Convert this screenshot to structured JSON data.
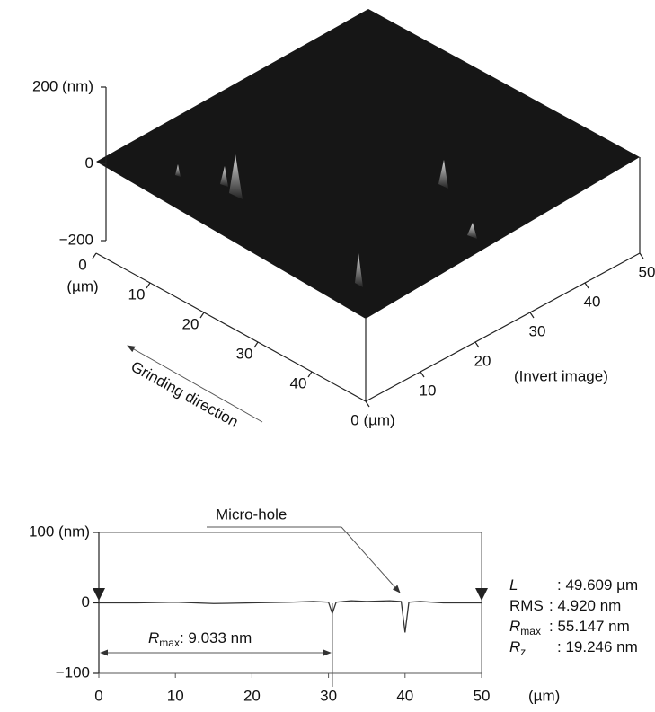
{
  "chart_data": [
    {
      "type": "surface3d",
      "zlim": [
        -200,
        200
      ],
      "zticks": [
        {
          "value": 200,
          "label": "200 (nm)"
        },
        0,
        {
          "value": -200,
          "label": "−200"
        }
      ],
      "xlim": [
        0,
        50
      ],
      "xticks": [
        0,
        10,
        20,
        30,
        40
      ],
      "xlabel": "(µm)",
      "ylim": [
        0,
        50
      ],
      "yticks": [
        {
          "value": 0,
          "label": "0 (µm)"
        },
        10,
        20,
        30,
        40,
        50
      ],
      "direction_label": "Grinding direction",
      "note": "(Invert image)"
    },
    {
      "type": "line",
      "xlim": [
        0,
        50
      ],
      "xticks": [
        0,
        10,
        20,
        30,
        40,
        50
      ],
      "xlabel": "(µm)",
      "ylim": [
        -100,
        100
      ],
      "yticks": [
        {
          "value": 100,
          "label": "100 (nm)"
        },
        0,
        {
          "value": -100,
          "label": "−100"
        }
      ],
      "color": "#333333",
      "x": [
        0,
        5,
        10,
        15,
        20,
        25,
        28,
        30,
        30.5,
        31,
        33,
        35,
        38,
        39.5,
        40,
        40.5,
        42,
        45,
        50
      ],
      "values": [
        0,
        0,
        1,
        -1,
        0,
        1,
        2,
        1,
        -15,
        1,
        3,
        2,
        3,
        2,
        -42,
        1,
        2,
        0,
        0
      ],
      "annotation_hole": "Micro-hole",
      "annotation_rmax": {
        "symbol": "R",
        "subscript": "max",
        "value": ": 9.033 nm"
      },
      "stats": [
        {
          "symbol": "L",
          "value": ": 49.609 µm"
        },
        {
          "symbol": "RMS",
          "value": ":  4.920 nm"
        },
        {
          "symbol": "R",
          "subscript": "max",
          "value": ": 55.147 nm"
        },
        {
          "symbol": "R",
          "subscript": "z",
          "value": ": 19.246 nm"
        }
      ]
    }
  ]
}
